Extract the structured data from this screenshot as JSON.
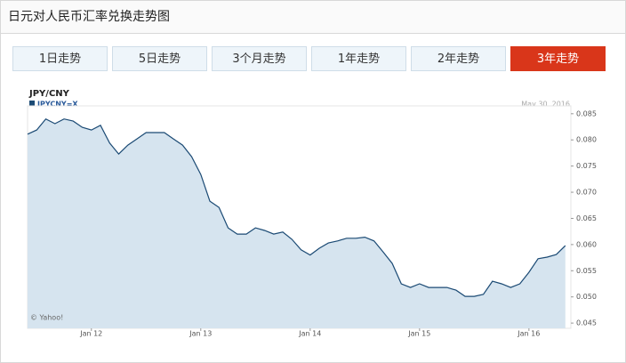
{
  "header": {
    "title": "日元对人民币汇率兑换走势图"
  },
  "tabs": [
    {
      "label": "1日走势",
      "active": false
    },
    {
      "label": "5日走势",
      "active": false
    },
    {
      "label": "3个月走势",
      "active": false
    },
    {
      "label": "1年走势",
      "active": false
    },
    {
      "label": "2年走势",
      "active": false
    },
    {
      "label": "3年走势",
      "active": true
    }
  ],
  "chart_data": {
    "type": "line",
    "title": "JPY/CNY",
    "date_note": "May 30, 2016",
    "credit": "© Yahoo!",
    "x": [
      "2011-06",
      "2011-07",
      "2011-08",
      "2011-09",
      "2011-10",
      "2011-11",
      "2011-12",
      "2012-01",
      "2012-02",
      "2012-03",
      "2012-04",
      "2012-05",
      "2012-06",
      "2012-07",
      "2012-08",
      "2012-09",
      "2012-10",
      "2012-11",
      "2012-12",
      "2013-01",
      "2013-02",
      "2013-03",
      "2013-04",
      "2013-05",
      "2013-06",
      "2013-07",
      "2013-08",
      "2013-09",
      "2013-10",
      "2013-11",
      "2013-12",
      "2014-01",
      "2014-02",
      "2014-03",
      "2014-04",
      "2014-05",
      "2014-06",
      "2014-07",
      "2014-08",
      "2014-09",
      "2014-10",
      "2014-11",
      "2014-12",
      "2015-01",
      "2015-02",
      "2015-03",
      "2015-04",
      "2015-05",
      "2015-06",
      "2015-07",
      "2015-08",
      "2015-09",
      "2015-10",
      "2015-11",
      "2015-12",
      "2016-01",
      "2016-02",
      "2016-03",
      "2016-04",
      "2016-05"
    ],
    "series": [
      {
        "name": "JPYCNY=X",
        "color": "#1b4a74",
        "fill": "#d6e4ef",
        "values": [
          0.0811,
          0.0819,
          0.084,
          0.0831,
          0.084,
          0.0836,
          0.0824,
          0.0819,
          0.0828,
          0.0794,
          0.0773,
          0.079,
          0.0802,
          0.0814,
          0.0814,
          0.0814,
          0.0802,
          0.079,
          0.0768,
          0.0734,
          0.0683,
          0.0671,
          0.0632,
          0.062,
          0.062,
          0.0632,
          0.0627,
          0.062,
          0.0624,
          0.061,
          0.059,
          0.058,
          0.0593,
          0.0603,
          0.0607,
          0.0612,
          0.0612,
          0.0614,
          0.0607,
          0.0586,
          0.0564,
          0.0525,
          0.0518,
          0.0525,
          0.0518,
          0.0518,
          0.0518,
          0.0513,
          0.0501,
          0.0501,
          0.0505,
          0.053,
          0.0525,
          0.0518,
          0.0525,
          0.0547,
          0.0573,
          0.0576,
          0.0581,
          0.0598
        ]
      }
    ],
    "ylim": [
      0.044,
      0.0865
    ],
    "yticks": [
      0.045,
      {
        "value": 0.05,
        "label": "0.050"
      },
      0.055,
      {
        "value": 0.06,
        "label": "0.060"
      },
      0.065,
      {
        "value": 0.07,
        "label": "0.070"
      },
      0.075,
      {
        "value": 0.08,
        "label": "0.080"
      },
      0.085
    ],
    "xticks": [
      {
        "value": "2012-01",
        "label": "Jan 12"
      },
      {
        "value": "2013-01",
        "label": "Jan 13"
      },
      {
        "value": "2014-01",
        "label": "Jan 14"
      },
      {
        "value": "2015-01",
        "label": "Jan 15"
      },
      {
        "value": "2016-01",
        "label": "Jan 16"
      }
    ]
  }
}
